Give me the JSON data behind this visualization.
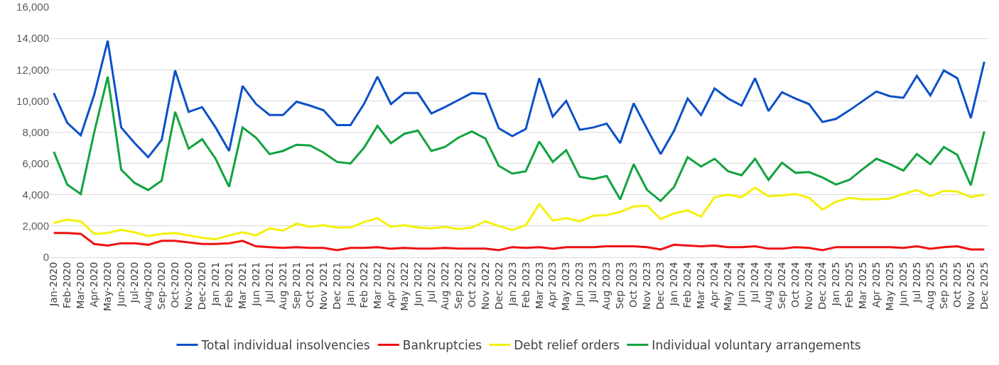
{
  "chart_data": {
    "type": "line",
    "categories": [
      "Jan-2020",
      "Feb-2020",
      "Mar-2020",
      "Apr-2020",
      "May-2020",
      "Jun-2020",
      "Jul-2020",
      "Aug-2020",
      "Sep-2020",
      "Oct-2020",
      "Nov-2020",
      "Dec-2020",
      "Jan 2021",
      "Feb 2021",
      "Mar 2021",
      "Jun 2021",
      "Jul 2021",
      "Aug 2021",
      "Sep 2021",
      "Oct 2021",
      "Nov 2021",
      "Dec 2021",
      "Jan 2022",
      "Feb 2022",
      "Mar 2022",
      "Apr 2022",
      "May 2022",
      "Jun 2022",
      "Jul 2022",
      "Aug 2022",
      "Sep 2022",
      "Oct 2022",
      "Nov 2022",
      "Dec 2022",
      "Jan 2023",
      "Feb 2023",
      "Mar 2023",
      "Apr 2023",
      "May 2023",
      "Jun 2023",
      "Jul 2023",
      "Aug 2023",
      "Sep 2023",
      "Oct 2023",
      "Nov 2023",
      "Dec 2023",
      "Jan 2024",
      "Feb 2024",
      "Mar 2024",
      "Apr 2024",
      "May 2024",
      "Jun 2024",
      "Jul 2024",
      "Aug 2024",
      "Sep 2024",
      "Oct 2024",
      "Nov 2024",
      "Dec 2024",
      "Jan 2025",
      "Feb 2025",
      "Mar 2025",
      "Apr 2025",
      "May 2025",
      "Jun 2025",
      "Jul 2025",
      "Aug 2025",
      "Sep 2025",
      "Oct 2025",
      "Nov 2025",
      "Dec 2025"
    ],
    "series": [
      {
        "name": "Total individual insolvencies",
        "color": "#0b50c8",
        "values": [
          10500,
          8600,
          7800,
          10400,
          13850,
          8300,
          7300,
          6400,
          7500,
          11950,
          9300,
          9600,
          8300,
          6800,
          10950,
          9800,
          9100,
          9100,
          9950,
          9700,
          9400,
          8450,
          8450,
          9800,
          11550,
          9800,
          10500,
          10500,
          9200,
          9600,
          10050,
          10500,
          10450,
          8250,
          7750,
          8200,
          11450,
          9000,
          10000,
          8150,
          8300,
          8550,
          7300,
          9850,
          8200,
          6600,
          8100,
          10150,
          9100,
          10800,
          10150,
          9700,
          11450,
          9350,
          10550,
          10150,
          9800,
          8650,
          8850,
          9400,
          10000,
          10600,
          10300,
          10200,
          11600,
          10350,
          11950,
          11450,
          8900,
          12500
        ]
      },
      {
        "name": "Bankruptcies",
        "color": "#ee1111",
        "values": [
          1550,
          1550,
          1500,
          850,
          750,
          900,
          900,
          800,
          1050,
          1050,
          950,
          850,
          850,
          900,
          1050,
          700,
          650,
          600,
          650,
          600,
          600,
          450,
          600,
          600,
          650,
          550,
          600,
          550,
          550,
          600,
          550,
          550,
          550,
          450,
          650,
          600,
          650,
          550,
          650,
          650,
          650,
          700,
          700,
          700,
          650,
          500,
          800,
          750,
          700,
          750,
          650,
          650,
          700,
          550,
          550,
          650,
          600,
          450,
          650,
          650,
          650,
          650,
          650,
          600,
          700,
          550,
          650,
          700,
          500,
          500
        ]
      },
      {
        "name": "Debt relief orders",
        "color": "#f5f00a",
        "values": [
          2200,
          2400,
          2300,
          1500,
          1550,
          1750,
          1600,
          1350,
          1500,
          1550,
          1400,
          1250,
          1150,
          1400,
          1600,
          1400,
          1850,
          1700,
          2150,
          1950,
          2050,
          1900,
          1900,
          2250,
          2500,
          1950,
          2050,
          1900,
          1850,
          1950,
          1800,
          1900,
          2300,
          2000,
          1750,
          2050,
          3400,
          2350,
          2500,
          2300,
          2650,
          2700,
          2900,
          3250,
          3300,
          2450,
          2800,
          3000,
          2600,
          3850,
          4000,
          3850,
          4450,
          3900,
          3950,
          4050,
          3800,
          3050,
          3550,
          3800,
          3700,
          3700,
          3750,
          4050,
          4300,
          3900,
          4250,
          4200,
          3850,
          4000
        ]
      },
      {
        "name": "Individual voluntary arrangements",
        "color": "#11a33f",
        "values": [
          6750,
          4650,
          4050,
          8000,
          11550,
          5600,
          4750,
          4300,
          4900,
          9300,
          6950,
          7550,
          6300,
          4500,
          8300,
          7650,
          6600,
          6800,
          7200,
          7150,
          6700,
          6100,
          6000,
          7000,
          8400,
          7300,
          7900,
          8100,
          6800,
          7050,
          7650,
          8050,
          7600,
          5850,
          5350,
          5500,
          7400,
          6100,
          6850,
          5150,
          5000,
          5200,
          3700,
          5950,
          4300,
          3600,
          4500,
          6400,
          5800,
          6300,
          5500,
          5250,
          6300,
          4950,
          6050,
          5400,
          5450,
          5100,
          4650,
          4950,
          5650,
          6300,
          5950,
          5550,
          6600,
          5950,
          7050,
          6550,
          4600,
          8050
        ]
      }
    ],
    "ylim": [
      0,
      16000
    ],
    "yticks": [
      0,
      {
        "value": 2000,
        "label": "2,000"
      },
      {
        "value": 4000,
        "label": "4,000"
      },
      {
        "value": 6000,
        "label": "6,000"
      },
      {
        "value": 8000,
        "label": "8,000"
      },
      {
        "value": 10000,
        "label": "10,000"
      },
      {
        "value": 12000,
        "label": "12,000"
      },
      {
        "value": 14000,
        "label": "14,000"
      },
      {
        "value": 16000,
        "label": "16,000"
      }
    ],
    "grid": "y",
    "legend": "bottom",
    "marker": "none",
    "line_style": "solid"
  }
}
